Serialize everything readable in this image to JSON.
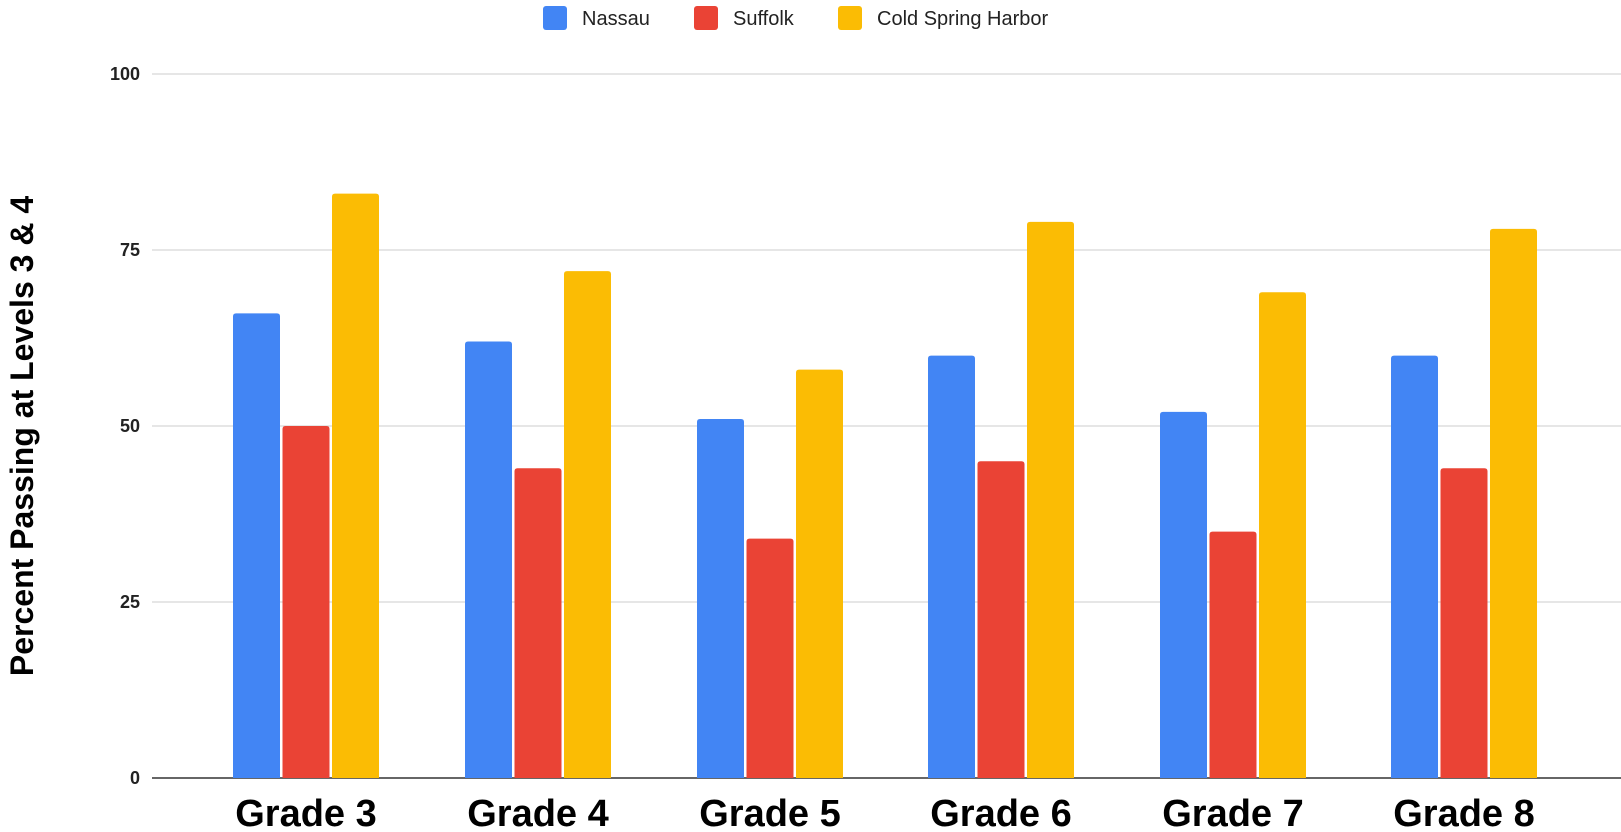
{
  "chart_data": {
    "type": "bar",
    "title": "",
    "xlabel": "",
    "ylabel": "Percent Passing at Levels 3 & 4",
    "categories": [
      "Grade 3",
      "Grade 4",
      "Grade 5",
      "Grade 6",
      "Grade 7",
      "Grade 8"
    ],
    "series": [
      {
        "name": "Nassau",
        "color": "#4285f4",
        "values": [
          66,
          62,
          51,
          60,
          52,
          60
        ]
      },
      {
        "name": "Suffolk",
        "color": "#ea4335",
        "values": [
          50,
          44,
          34,
          45,
          35,
          44
        ]
      },
      {
        "name": "Cold Spring Harbor",
        "color": "#fbbc04",
        "values": [
          83,
          72,
          58,
          79,
          69,
          78
        ]
      }
    ],
    "ylim": [
      0,
      100
    ],
    "yticks": [
      0,
      25,
      50,
      75,
      100
    ],
    "grid": true,
    "legend_position": "top-center"
  }
}
